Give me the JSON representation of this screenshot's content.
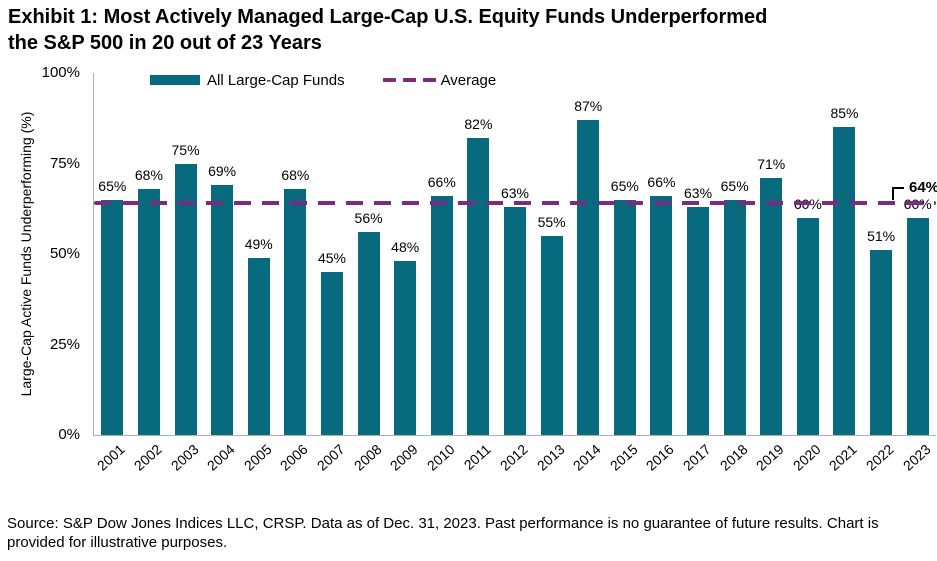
{
  "page": {
    "title_line1": "Exhibit 1: Most Actively Managed Large-Cap U.S. Equity Funds Underperformed",
    "title_line2": "the S&P 500 in 20 out of 23 Years",
    "source": "Source: S&P Dow Jones Indices LLC, CRSP. Data as of Dec. 31, 2023. Past performance is no guarantee of future results. Chart is provided for illustrative purposes."
  },
  "legend": {
    "bars_label": "All Large-Cap Funds",
    "average_label": "Average"
  },
  "chart_data": {
    "type": "bar",
    "title": "Exhibit 1: Most Actively Managed Large-Cap U.S. Equity Funds Underperformed the S&P 500 in 20 out of 23 Years",
    "series_name": "All Large-Cap Funds",
    "categories": [
      "2001",
      "2002",
      "2003",
      "2004",
      "2005",
      "2006",
      "2007",
      "2008",
      "2009",
      "2010",
      "2011",
      "2012",
      "2013",
      "2014",
      "2015",
      "2016",
      "2017",
      "2018",
      "2019",
      "2020",
      "2021",
      "2022",
      "2023"
    ],
    "values": [
      65,
      68,
      75,
      69,
      49,
      68,
      45,
      56,
      48,
      66,
      82,
      63,
      55,
      87,
      65,
      66,
      63,
      65,
      71,
      60,
      85,
      51,
      60
    ],
    "value_label_suffix": "%",
    "average": 64,
    "average_label": "64%",
    "xlabel": "",
    "ylabel": "Large-Cap Active Funds Underperforming (%)",
    "ylim": [
      0,
      100
    ],
    "yticks": [
      0,
      25,
      50,
      75,
      100
    ],
    "ytick_labels": [
      "0%",
      "25%",
      "50%",
      "75%",
      "100%"
    ],
    "grid": false,
    "legend_position": "top",
    "colors": {
      "bar": "#076a7e",
      "average_line": "#7d2b82",
      "axis": "#b0b0b0",
      "text": "#000000"
    }
  }
}
